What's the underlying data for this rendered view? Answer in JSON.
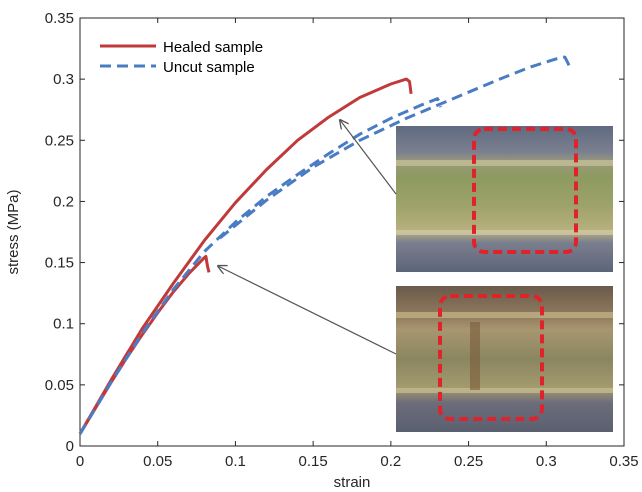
{
  "chart_data": {
    "type": "line",
    "xlabel": "strain",
    "ylabel": "stress (MPa)",
    "xlim": [
      0,
      0.35
    ],
    "ylim": [
      0,
      0.35
    ],
    "xticks": [
      0,
      0.05,
      0.1,
      0.15,
      0.2,
      0.25,
      0.3,
      0.35
    ],
    "xtick_labels": [
      "0",
      "0.05",
      "0.1",
      "0.15",
      "0.2",
      "0.25",
      "0.3",
      "0.35"
    ],
    "yticks": [
      0,
      0.05,
      0.1,
      0.15,
      0.2,
      0.25,
      0.3,
      0.35
    ],
    "ytick_labels": [
      "0",
      "0.05",
      "0.1",
      "0.15",
      "0.2",
      "0.25",
      "0.3",
      "0.35"
    ],
    "grid": false,
    "legend_position": "top-left",
    "series": [
      {
        "name": "Healed sample",
        "color": "#c0393b",
        "style": "solid",
        "x": [
          0,
          0.01,
          0.02,
          0.03,
          0.04,
          0.05,
          0.06,
          0.07,
          0.08,
          0.081,
          0.082,
          0.083
        ],
        "y": [
          0.01,
          0.031,
          0.052,
          0.072,
          0.091,
          0.109,
          0.126,
          0.141,
          0.154,
          0.155,
          0.147,
          0.142
        ]
      },
      {
        "name": "Healed sample",
        "color": "#c0393b",
        "style": "solid",
        "x": [
          0,
          0.02,
          0.04,
          0.06,
          0.08,
          0.1,
          0.12,
          0.14,
          0.16,
          0.18,
          0.2,
          0.21,
          0.212,
          0.213
        ],
        "y": [
          0.01,
          0.054,
          0.096,
          0.133,
          0.168,
          0.199,
          0.226,
          0.25,
          0.269,
          0.285,
          0.296,
          0.3,
          0.298,
          0.288
        ]
      },
      {
        "name": "Uncut sample",
        "color": "#4a7cc4",
        "style": "dashed",
        "x": [
          0,
          0.02,
          0.04,
          0.06,
          0.08,
          0.1,
          0.12,
          0.14,
          0.16,
          0.18,
          0.2,
          0.22,
          0.23,
          0.231,
          0.232
        ],
        "y": [
          0.01,
          0.052,
          0.092,
          0.128,
          0.159,
          0.183,
          0.204,
          0.222,
          0.239,
          0.255,
          0.268,
          0.279,
          0.284,
          0.282,
          0.277
        ]
      },
      {
        "name": "Uncut sample",
        "color": "#4a7cc4",
        "style": "dashed",
        "x": [
          0.09,
          0.12,
          0.15,
          0.18,
          0.21,
          0.24,
          0.27,
          0.29,
          0.31,
          0.312,
          0.314,
          0.316
        ],
        "y": [
          0.17,
          0.201,
          0.228,
          0.25,
          0.268,
          0.284,
          0.3,
          0.31,
          0.318,
          0.318,
          0.313,
          0.307
        ]
      }
    ],
    "legend": [
      {
        "label": "Healed sample",
        "color": "#c0393b",
        "style": "solid"
      },
      {
        "label": "Uncut sample",
        "color": "#4a7cc4",
        "style": "dashed"
      }
    ],
    "annotations": [
      {
        "type": "arrow",
        "from_inset": "top",
        "to": [
          0.167,
          0.267
        ]
      },
      {
        "type": "arrow",
        "from_inset": "bottom",
        "to": [
          0.087,
          0.154
        ]
      }
    ],
    "insets": [
      {
        "name": "top-micrograph",
        "content": "photo of intact sample with red dashed highlight box",
        "box_color": "#e0232a"
      },
      {
        "name": "bottom-micrograph",
        "content": "photo of healed cut region with red dashed highlight box",
        "box_color": "#e0232a"
      }
    ]
  }
}
